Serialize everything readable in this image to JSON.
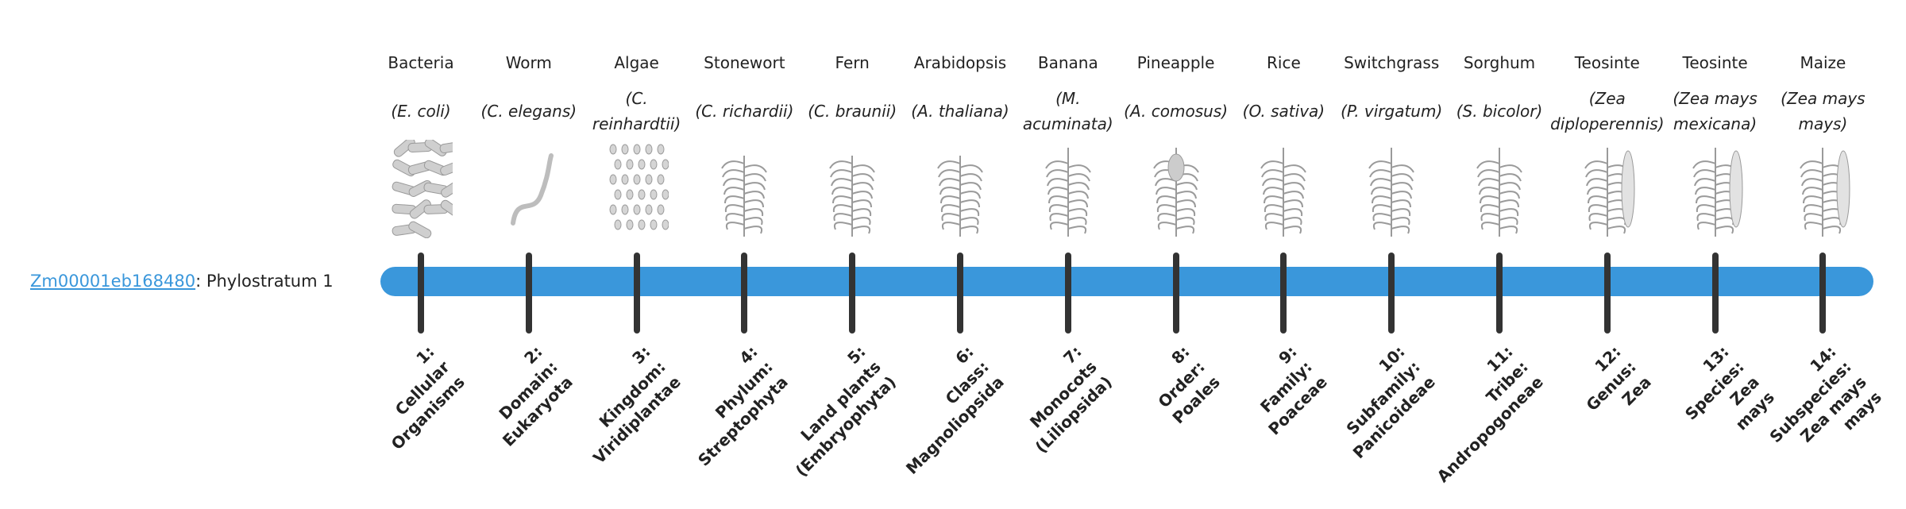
{
  "gene": {
    "id": "Zm00001eb168480",
    "suffix": ": Phylostratum 1"
  },
  "colors": {
    "bar": "#3a97db",
    "tick": "#333333",
    "link": "#3a97db"
  },
  "strata": [
    {
      "common": "Bacteria",
      "scientific": "(E. coli)",
      "icon": "bacteria-illustration",
      "rank": [
        "1:",
        "Cellular",
        "Organisms"
      ]
    },
    {
      "common": "Worm",
      "scientific": "(C. elegans)",
      "icon": "worm-illustration",
      "rank": [
        "2:",
        "Domain:",
        "Eukaryota"
      ]
    },
    {
      "common": "Algae",
      "scientific": "(C. reinhardtii)",
      "icon": "algae-illustration",
      "rank": [
        "3:",
        "Kingdom:",
        "Viridiplantae"
      ]
    },
    {
      "common": "Stonewort",
      "scientific": "(C. richardii)",
      "icon": "stonewort-illustration",
      "rank": [
        "4:",
        "Phylum:",
        "Streptophyta"
      ]
    },
    {
      "common": "Fern",
      "scientific": "(C. braunii)",
      "icon": "fern-illustration",
      "rank": [
        "5:",
        "Land plants",
        "(Embryophyta)"
      ]
    },
    {
      "common": "Arabidopsis",
      "scientific": "(A. thaliana)",
      "icon": "arabidopsis-illustration",
      "rank": [
        "6:",
        "Class:",
        "Magnoliopsida"
      ]
    },
    {
      "common": "Banana",
      "scientific": "(M. acuminata)",
      "icon": "banana-illustration",
      "rank": [
        "7:",
        "Monocots",
        "(Liliopsida)"
      ]
    },
    {
      "common": "Pineapple",
      "scientific": "(A. comosus)",
      "icon": "pineapple-illustration",
      "rank": [
        "8:",
        "Order:",
        "Poales"
      ]
    },
    {
      "common": "Rice",
      "scientific": "(O. sativa)",
      "icon": "rice-illustration",
      "rank": [
        "9:",
        "Family:",
        "Poaceae"
      ]
    },
    {
      "common": "Switchgrass",
      "scientific": "(P. virgatum)",
      "icon": "switchgrass-illustration",
      "rank": [
        "10:",
        "Subfamily:",
        "Panicoideae"
      ]
    },
    {
      "common": "Sorghum",
      "scientific": "(S. bicolor)",
      "icon": "sorghum-illustration",
      "rank": [
        "11:",
        "Tribe:",
        "Andropogoneae"
      ]
    },
    {
      "common": "Teosinte",
      "scientific": "(Zea diploperennis)",
      "icon": "teosinte-illustration",
      "rank": [
        "12:",
        "Genus:",
        "Zea"
      ]
    },
    {
      "common": "Teosinte",
      "scientific": "(Zea mays mexicana)",
      "icon": "teosinte-mexicana-illustration",
      "rank": [
        "13:",
        "Species:",
        "Zea",
        "mays"
      ]
    },
    {
      "common": "Maize",
      "scientific": "(Zea mays mays)",
      "icon": "maize-illustration",
      "rank": [
        "14:",
        "Subspecies:",
        "Zea mays",
        "mays"
      ]
    }
  ]
}
